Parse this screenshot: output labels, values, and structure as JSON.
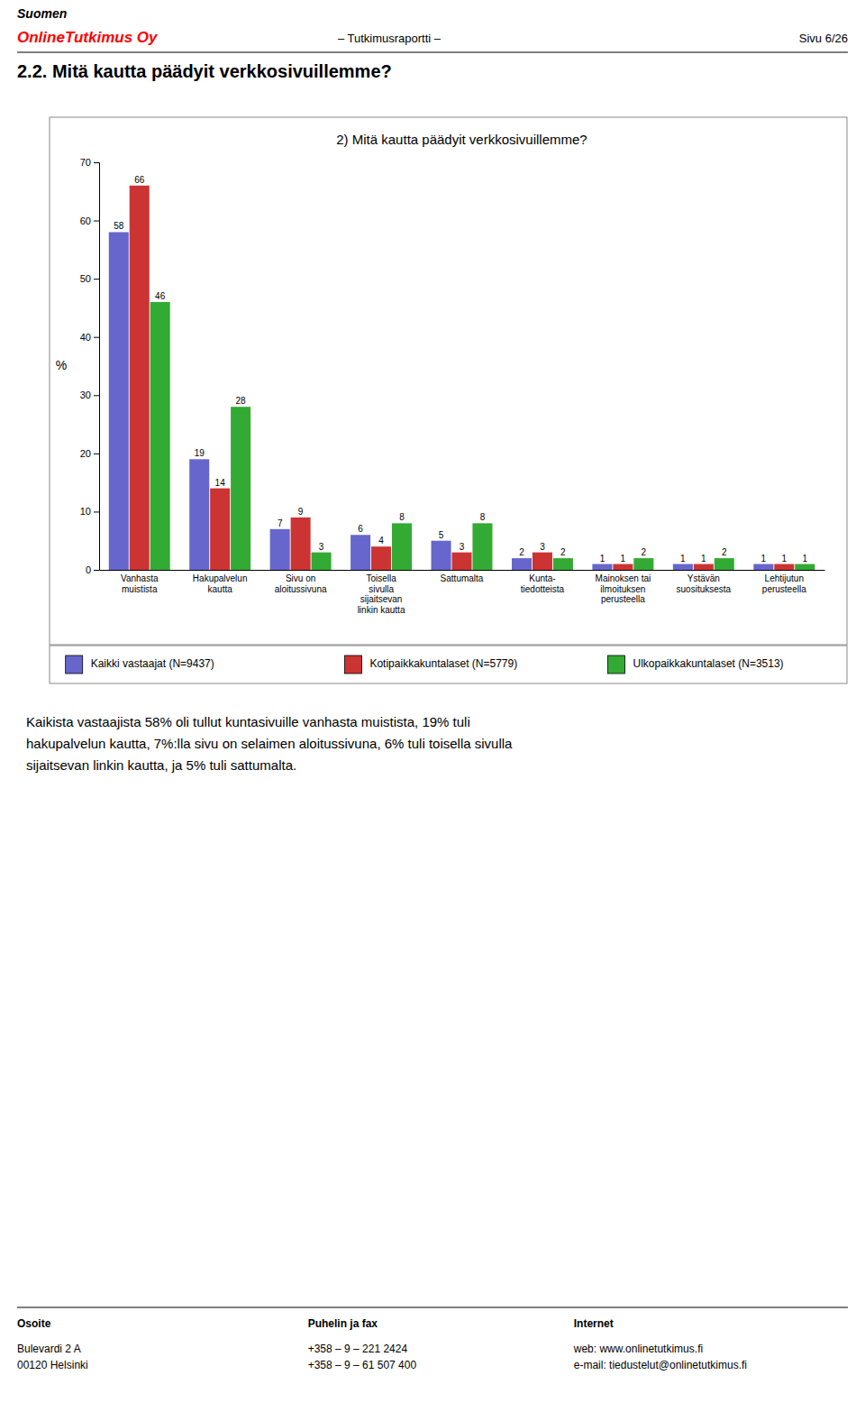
{
  "header": {
    "company": "Suomen",
    "brand": "OnlineTutkimus Oy",
    "center": "– Tutkimusraportti –",
    "right": "Sivu 6/26"
  },
  "page_title": "2.2. Mitä kautta päädyit verkkosivuillemme?",
  "chart_data": {
    "type": "bar",
    "title": "2) Mitä kautta päädyit verkkosivuillemme?",
    "ylabel": "%",
    "categories": [
      "Vanhasta\nmuistista",
      "Hakupalvelun\nkautta",
      "Sivu on\naloitussivuna",
      "Toisella\nsivulla\nsijaitsevan\nlinkin kautta",
      "Sattumalta",
      "Kunta-\ntiedotteista",
      "Mainoksen tai\nilmoituksen\nperusteella",
      "Ystävän\nsuosituksesta",
      "Lehtijutun\nperusteella"
    ],
    "series": [
      {
        "name": "Kaikki vastaajat (N=9437)",
        "color": "#6666cc",
        "values": [
          58,
          19,
          7,
          6,
          5,
          2,
          1,
          1,
          1
        ]
      },
      {
        "name": "Kotipaikkakuntalaset (N=5779)",
        "color": "#cc3333",
        "values": [
          66,
          14,
          9,
          4,
          3,
          3,
          1,
          1,
          1
        ]
      },
      {
        "name": "Ulkopaikkakuntalaset (N=3513)",
        "color": "#33aa33",
        "values": [
          46,
          28,
          3,
          8,
          8,
          2,
          2,
          2,
          1
        ]
      }
    ],
    "ylim": [
      0,
      70
    ],
    "yticks": [
      0,
      10,
      20,
      30,
      40,
      50,
      60,
      70
    ],
    "grid": false,
    "legend": "bottom",
    "data_labels": true
  },
  "body_text": "Kaikista vastaajista 58% oli tullut kuntasivuille vanhasta muistista, 19% tuli\nhakupalvelun kautta, 7%:lla sivu on selaimen aloitussivuna, 6% tuli toisella sivulla\nsijaitsevan linkin kautta, ja 5% tuli sattumalta.",
  "footer": [
    {
      "title": "Osoite",
      "text": "Bulevardi 2 A\n00120 Helsinki"
    },
    {
      "title": "Puhelin ja fax",
      "text": "+358 – 9 – 221 2424\n+358 – 9 – 61 507 400"
    },
    {
      "title": "Internet",
      "text": "web: www.onlinetutkimus.fi\ne-mail: tiedustelut@onlinetutkimus.fi"
    }
  ]
}
